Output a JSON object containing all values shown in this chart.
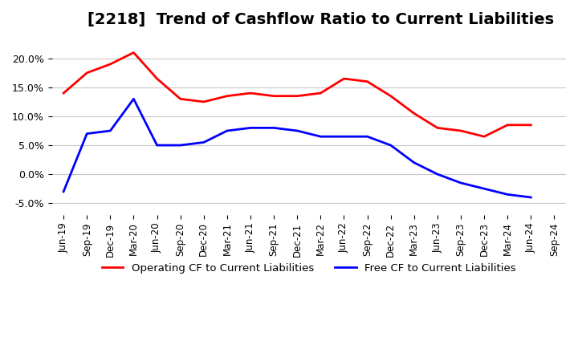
{
  "title": "[2218]  Trend of Cashflow Ratio to Current Liabilities",
  "x_labels": [
    "Jun-19",
    "Sep-19",
    "Dec-19",
    "Mar-20",
    "Jun-20",
    "Sep-20",
    "Dec-20",
    "Mar-21",
    "Jun-21",
    "Sep-21",
    "Dec-21",
    "Mar-22",
    "Jun-22",
    "Sep-22",
    "Dec-22",
    "Mar-23",
    "Jun-23",
    "Sep-23",
    "Dec-23",
    "Mar-24",
    "Jun-24",
    "Sep-24"
  ],
  "operating_cf": [
    0.14,
    0.175,
    0.19,
    0.21,
    0.165,
    0.13,
    0.125,
    0.135,
    0.14,
    0.135,
    0.135,
    0.14,
    0.165,
    0.16,
    0.135,
    0.105,
    0.08,
    0.075,
    0.065,
    0.085,
    0.085,
    null
  ],
  "free_cf": [
    -0.03,
    0.07,
    0.075,
    0.13,
    0.05,
    0.05,
    0.055,
    0.075,
    0.08,
    0.08,
    0.075,
    0.065,
    0.065,
    0.065,
    0.05,
    0.02,
    0.0,
    -0.015,
    -0.025,
    -0.035,
    -0.04,
    null
  ],
  "ylim": [
    -0.07,
    0.24
  ],
  "yticks": [
    -0.05,
    0.0,
    0.05,
    0.1,
    0.15,
    0.2
  ],
  "operating_color": "#ff0000",
  "free_color": "#0000ff",
  "background_color": "#ffffff",
  "grid_color": "#c8c8c8",
  "title_fontsize": 14,
  "legend_labels": [
    "Operating CF to Current Liabilities",
    "Free CF to Current Liabilities"
  ]
}
